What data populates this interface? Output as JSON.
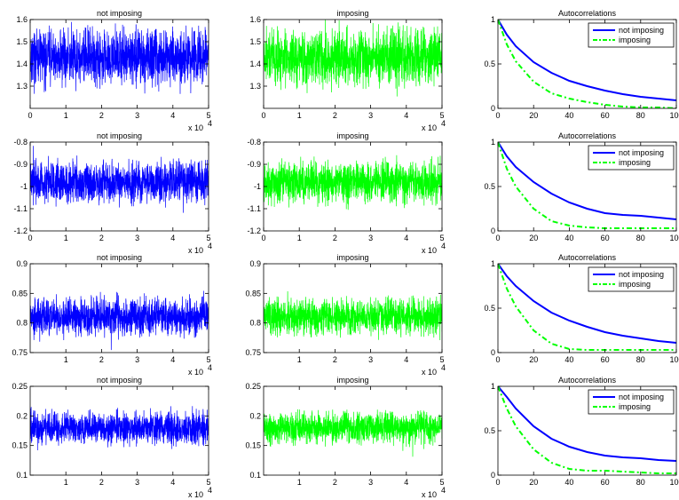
{
  "colors": {
    "blue": "#0000ff",
    "green": "#00ff00"
  },
  "chart_data": [
    {
      "type": "line",
      "title": "not imposing",
      "series": [
        {
          "color": "#0000ff",
          "center": 1.43,
          "amp": 0.06
        }
      ],
      "xlim": [
        0,
        50000
      ],
      "ylim": [
        1.2,
        1.6
      ],
      "xticks": [
        "0",
        "1",
        "2",
        "3",
        "4",
        "5"
      ],
      "yticks": [
        "1.3",
        "1.4",
        "1.5",
        "1.6"
      ],
      "xexponent": "x 10",
      "xexponent_power": "4"
    },
    {
      "type": "line",
      "title": "imposing",
      "series": [
        {
          "color": "#00ff00",
          "center": 1.43,
          "amp": 0.06
        }
      ],
      "xlim": [
        0,
        50000
      ],
      "ylim": [
        1.2,
        1.6
      ],
      "xticks": [
        "0",
        "1",
        "2",
        "3",
        "4",
        "5"
      ],
      "yticks": [
        "1.3",
        "1.4",
        "1.5",
        "1.6"
      ],
      "xexponent": "x 10",
      "xexponent_power": "4"
    },
    {
      "type": "line",
      "title": "Autocorrelations",
      "xlim": [
        0,
        100
      ],
      "ylim": [
        0,
        1
      ],
      "xticks": [
        "0",
        "20",
        "40",
        "60",
        "80",
        "100"
      ],
      "yticks": [
        "0",
        "0.5",
        "1"
      ],
      "legend": "top-right",
      "series": [
        {
          "name": "not imposing",
          "style": "solid",
          "color": "#0000ff",
          "x": [
            0,
            5,
            10,
            20,
            30,
            40,
            50,
            60,
            70,
            80,
            90,
            100
          ],
          "y": [
            1.0,
            0.83,
            0.7,
            0.52,
            0.4,
            0.31,
            0.25,
            0.2,
            0.16,
            0.13,
            0.11,
            0.09
          ]
        },
        {
          "name": "imposing",
          "style": "dash-dot",
          "color": "#00ff00",
          "x": [
            0,
            5,
            10,
            20,
            30,
            40,
            50,
            60,
            70,
            80,
            90,
            100
          ],
          "y": [
            1.0,
            0.72,
            0.53,
            0.3,
            0.17,
            0.11,
            0.07,
            0.04,
            0.02,
            0.01,
            0.01,
            0.0
          ]
        }
      ]
    },
    {
      "type": "line",
      "title": "not imposing",
      "series": [
        {
          "color": "#0000ff",
          "center": -0.98,
          "amp": 0.045
        }
      ],
      "xlim": [
        0,
        50000
      ],
      "ylim": [
        -1.2,
        -0.8
      ],
      "xticks": [
        "0",
        "1",
        "2",
        "3",
        "4",
        "5"
      ],
      "yticks": [
        "-1.2",
        "-1.1",
        "-1",
        "-0.9",
        "-0.8"
      ],
      "xexponent": "x 10",
      "xexponent_power": "4"
    },
    {
      "type": "line",
      "title": "imposing",
      "series": [
        {
          "color": "#00ff00",
          "center": -0.98,
          "amp": 0.045
        }
      ],
      "xlim": [
        0,
        50000
      ],
      "ylim": [
        -1.2,
        -0.8
      ],
      "xticks": [
        "0",
        "1",
        "2",
        "3",
        "4",
        "5"
      ],
      "yticks": [
        "-1.2",
        "-1.1",
        "-1",
        "-0.9",
        "-0.8"
      ],
      "xexponent": "x 10",
      "xexponent_power": "4"
    },
    {
      "type": "line",
      "title": "Autocorrelations",
      "xlim": [
        0,
        100
      ],
      "ylim": [
        0,
        1
      ],
      "xticks": [
        "0",
        "20",
        "40",
        "60",
        "80",
        "100"
      ],
      "yticks": [
        "0",
        "0.5",
        "1"
      ],
      "legend": "top-right",
      "series": [
        {
          "name": "not imposing",
          "style": "solid",
          "color": "#0000ff",
          "x": [
            0,
            5,
            10,
            20,
            30,
            40,
            50,
            60,
            70,
            80,
            90,
            100
          ],
          "y": [
            1.0,
            0.84,
            0.72,
            0.55,
            0.42,
            0.32,
            0.25,
            0.2,
            0.18,
            0.17,
            0.15,
            0.13
          ]
        },
        {
          "name": "imposing",
          "style": "dash-dot",
          "color": "#00ff00",
          "x": [
            0,
            5,
            10,
            20,
            30,
            40,
            50,
            60,
            70,
            80,
            90,
            100
          ],
          "y": [
            1.0,
            0.7,
            0.5,
            0.25,
            0.11,
            0.06,
            0.04,
            0.03,
            0.03,
            0.03,
            0.03,
            0.03
          ]
        }
      ]
    },
    {
      "type": "line",
      "title": "not imposing",
      "series": [
        {
          "color": "#0000ff",
          "center": 0.81,
          "amp": 0.015
        }
      ],
      "xlim": [
        0,
        50000
      ],
      "ylim": [
        0.75,
        0.9
      ],
      "xticks": [
        "1",
        "2",
        "3",
        "4",
        "5"
      ],
      "yticks": [
        "0.75",
        "0.8",
        "0.85",
        "0.9"
      ],
      "xexponent": "x 10",
      "xexponent_power": "4"
    },
    {
      "type": "line",
      "title": "imposing",
      "series": [
        {
          "color": "#00ff00",
          "center": 0.81,
          "amp": 0.015
        }
      ],
      "xlim": [
        0,
        50000
      ],
      "ylim": [
        0.75,
        0.9
      ],
      "xticks": [
        "1",
        "2",
        "3",
        "4",
        "5"
      ],
      "yticks": [
        "0.75",
        "0.8",
        "0.85",
        "0.9"
      ],
      "xexponent": "x 10",
      "xexponent_power": "4"
    },
    {
      "type": "line",
      "title": "Autocorrelations",
      "xlim": [
        0,
        100
      ],
      "ylim": [
        0,
        1
      ],
      "xticks": [
        "0",
        "20",
        "40",
        "60",
        "80",
        "100"
      ],
      "yticks": [
        "0",
        "0.5",
        "1"
      ],
      "legend": "top-right",
      "series": [
        {
          "name": "not imposing",
          "style": "solid",
          "color": "#0000ff",
          "x": [
            0,
            5,
            10,
            20,
            30,
            40,
            50,
            60,
            70,
            80,
            90,
            100
          ],
          "y": [
            1.0,
            0.86,
            0.75,
            0.58,
            0.45,
            0.36,
            0.29,
            0.23,
            0.19,
            0.16,
            0.13,
            0.11
          ]
        },
        {
          "name": "imposing",
          "style": "dash-dot",
          "color": "#00ff00",
          "x": [
            0,
            5,
            10,
            20,
            30,
            40,
            50,
            60,
            70,
            80,
            90,
            100
          ],
          "y": [
            1.0,
            0.72,
            0.52,
            0.25,
            0.1,
            0.04,
            0.03,
            0.03,
            0.03,
            0.03,
            0.03,
            0.03
          ]
        }
      ]
    },
    {
      "type": "line",
      "title": "not imposing",
      "series": [
        {
          "color": "#0000ff",
          "center": 0.18,
          "amp": 0.013
        }
      ],
      "xlim": [
        0,
        50000
      ],
      "ylim": [
        0.1,
        0.25
      ],
      "xticks": [
        "1",
        "2",
        "3",
        "4",
        "5"
      ],
      "yticks": [
        "0.1",
        "0.15",
        "0.2",
        "0.25"
      ],
      "xexponent": "x 10",
      "xexponent_power": "4"
    },
    {
      "type": "line",
      "title": "imposing",
      "series": [
        {
          "color": "#00ff00",
          "center": 0.18,
          "amp": 0.013
        }
      ],
      "xlim": [
        0,
        50000
      ],
      "ylim": [
        0.1,
        0.25
      ],
      "xticks": [
        "1",
        "2",
        "3",
        "4",
        "5"
      ],
      "yticks": [
        "0.1",
        "0.15",
        "0.2",
        "0.25"
      ],
      "xexponent": "x 10",
      "xexponent_power": "4"
    },
    {
      "type": "line",
      "title": "Autocorrelations",
      "xlim": [
        0,
        100
      ],
      "ylim": [
        0,
        1
      ],
      "xticks": [
        "0",
        "20",
        "40",
        "60",
        "80",
        "100"
      ],
      "yticks": [
        "0",
        "0.5",
        "1"
      ],
      "legend": "top-right",
      "series": [
        {
          "name": "not imposing",
          "style": "solid",
          "color": "#0000ff",
          "x": [
            0,
            5,
            10,
            20,
            30,
            40,
            50,
            60,
            70,
            80,
            90,
            100
          ],
          "y": [
            1.0,
            0.88,
            0.75,
            0.55,
            0.41,
            0.32,
            0.26,
            0.22,
            0.2,
            0.19,
            0.17,
            0.16
          ]
        },
        {
          "name": "imposing",
          "style": "dash-dot",
          "color": "#00ff00",
          "x": [
            0,
            5,
            10,
            20,
            30,
            40,
            50,
            60,
            70,
            80,
            90,
            100
          ],
          "y": [
            1.0,
            0.75,
            0.55,
            0.29,
            0.14,
            0.07,
            0.05,
            0.05,
            0.04,
            0.03,
            0.02,
            0.02
          ]
        }
      ]
    }
  ]
}
